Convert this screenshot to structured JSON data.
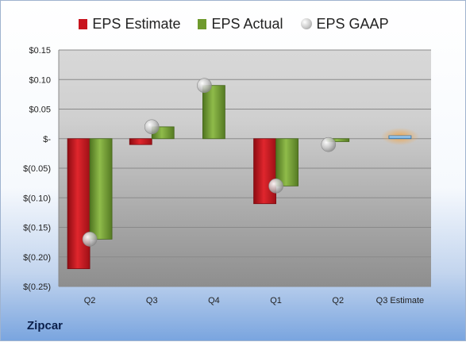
{
  "chart_data": {
    "type": "bar",
    "categories": [
      "Q2",
      "Q3",
      "Q4",
      "Q1",
      "Q2",
      "Q3 Estimate"
    ],
    "series": [
      {
        "name": "EPS Estimate",
        "values": [
          -0.22,
          -0.01,
          null,
          -0.11,
          null,
          null
        ],
        "color": "#c8141e"
      },
      {
        "name": "EPS Actual",
        "values": [
          -0.17,
          0.02,
          0.09,
          -0.08,
          -0.005,
          null
        ],
        "color": "#6f9a2d"
      },
      {
        "name": "EPS GAAP",
        "values": [
          -0.17,
          0.02,
          0.09,
          -0.08,
          -0.01,
          null
        ],
        "color": "#bdbdbd"
      }
    ],
    "estimate_bar": {
      "category": "Q3 Estimate",
      "value": 0.005,
      "color": "#7ab8e8"
    },
    "ylim": [
      -0.25,
      0.15
    ],
    "yticks": [
      "$(0.25)",
      "$(0.20)",
      "$(0.15)",
      "$(0.10)",
      "$(0.05)",
      "$-",
      "$0.05",
      "$0.10",
      "$0.15"
    ],
    "legend_position": "top"
  },
  "legend": {
    "estimate": "EPS Estimate",
    "actual": "EPS Actual",
    "gaap": "EPS GAAP"
  },
  "company": "Zipcar"
}
